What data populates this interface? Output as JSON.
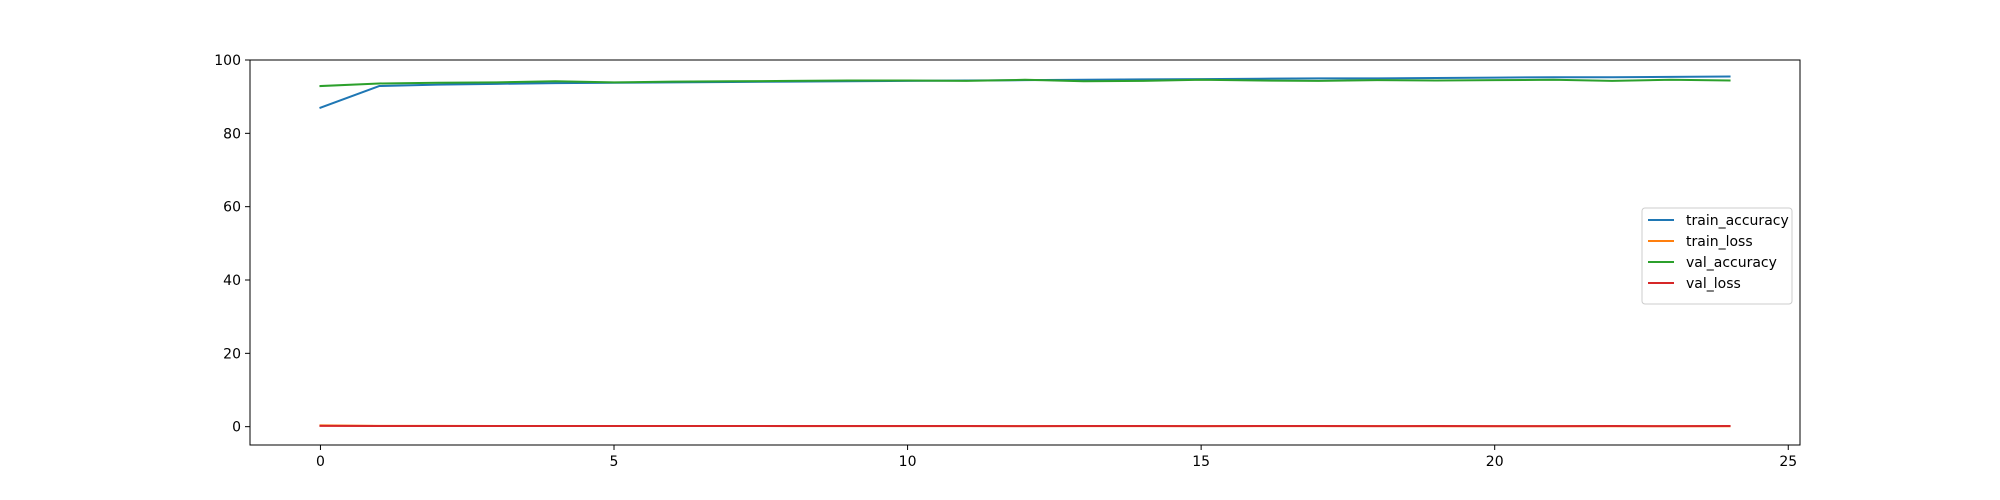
{
  "chart_data": {
    "type": "line",
    "title": "",
    "xlabel": "",
    "ylabel": "",
    "xlim": [
      -1.2,
      25.2
    ],
    "ylim": [
      -5,
      100
    ],
    "xticks": [
      0,
      5,
      10,
      15,
      20,
      25
    ],
    "yticks": [
      0,
      20,
      40,
      60,
      80,
      100
    ],
    "grid": false,
    "legend_position": "center-right",
    "x": [
      0,
      1,
      2,
      3,
      4,
      5,
      6,
      7,
      8,
      9,
      10,
      11,
      12,
      13,
      14,
      15,
      16,
      17,
      18,
      19,
      20,
      21,
      22,
      23,
      24
    ],
    "series": [
      {
        "name": "train_accuracy",
        "color": "#1f77b4",
        "values": [
          87.0,
          92.9,
          93.3,
          93.5,
          93.7,
          93.8,
          93.9,
          94.0,
          94.1,
          94.2,
          94.3,
          94.4,
          94.5,
          94.6,
          94.7,
          94.8,
          94.9,
          95.0,
          95.0,
          95.1,
          95.2,
          95.3,
          95.3,
          95.4,
          95.5
        ]
      },
      {
        "name": "train_loss",
        "color": "#ff7f0e",
        "values": [
          0.35,
          0.22,
          0.2,
          0.19,
          0.18,
          0.18,
          0.17,
          0.17,
          0.16,
          0.16,
          0.16,
          0.15,
          0.15,
          0.15,
          0.15,
          0.14,
          0.14,
          0.14,
          0.14,
          0.13,
          0.13,
          0.13,
          0.13,
          0.13,
          0.12
        ]
      },
      {
        "name": "val_accuracy",
        "color": "#2ca02c",
        "values": [
          92.9,
          93.6,
          93.8,
          93.9,
          94.2,
          93.9,
          94.1,
          94.2,
          94.3,
          94.4,
          94.4,
          94.3,
          94.6,
          94.2,
          94.3,
          94.6,
          94.4,
          94.3,
          94.5,
          94.4,
          94.5,
          94.6,
          94.3,
          94.6,
          94.4
        ]
      },
      {
        "name": "val_loss",
        "color": "#d62728",
        "values": [
          0.2,
          0.19,
          0.18,
          0.18,
          0.17,
          0.18,
          0.17,
          0.17,
          0.17,
          0.17,
          0.17,
          0.17,
          0.16,
          0.17,
          0.17,
          0.16,
          0.17,
          0.17,
          0.16,
          0.17,
          0.16,
          0.16,
          0.17,
          0.16,
          0.17
        ]
      }
    ]
  }
}
